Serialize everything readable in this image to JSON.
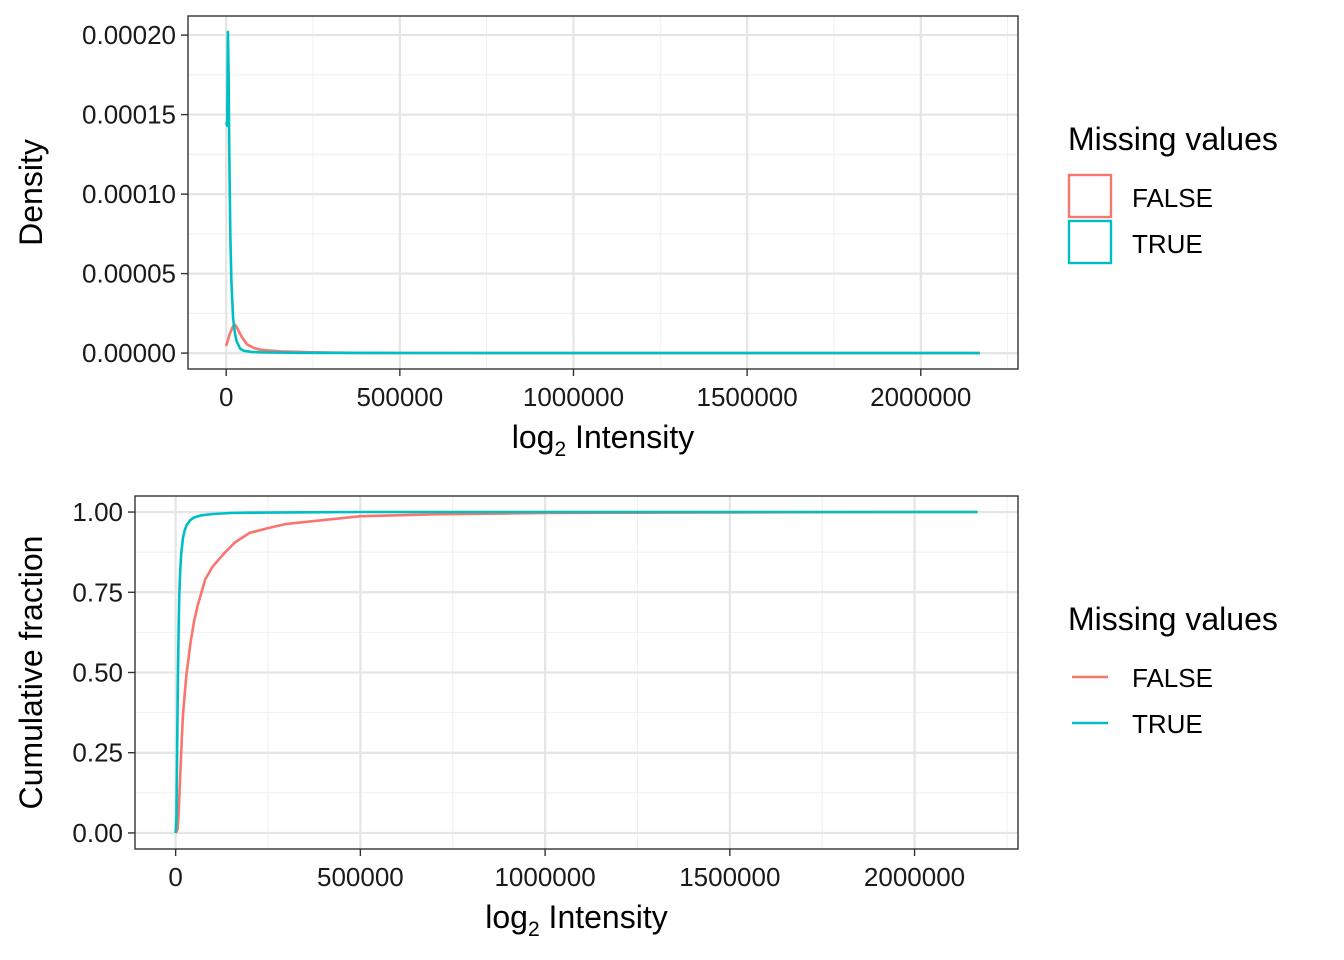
{
  "colors": {
    "FALSE": "#F8766D",
    "TRUE": "#00BFC4"
  },
  "chart_data": [
    {
      "type": "line",
      "subtype": "density",
      "title": "",
      "xlabel_main": "log",
      "xlabel_sub": "2",
      "xlabel_rest": " Intensity",
      "ylabel": "Density",
      "xlim": [
        -110000,
        2280000
      ],
      "ylim": [
        -1e-05,
        0.000212
      ],
      "x_ticks": [
        0,
        500000,
        1000000,
        1500000,
        2000000
      ],
      "x_tick_labels": [
        "0",
        "500000",
        "1000000",
        "1500000",
        "2000000"
      ],
      "y_ticks": [
        0,
        5e-05,
        0.0001,
        0.00015,
        0.0002
      ],
      "y_tick_labels": [
        "0.00000",
        "0.00005",
        "0.00010",
        "0.00015",
        "0.00020"
      ],
      "grid": true,
      "legend": {
        "title": "Missing values",
        "placement": "right",
        "key": "box",
        "entries": [
          "FALSE",
          "TRUE"
        ]
      },
      "series": [
        {
          "name": "FALSE",
          "x": [
            0,
            10000,
            20000,
            25000,
            30000,
            40000,
            50000,
            60000,
            80000,
            100000,
            130000,
            160000,
            200000,
            250000,
            300000,
            400000,
            500000,
            700000,
            1000000,
            1500000,
            2000000,
            2170000
          ],
          "y": [
            4.5e-06,
            1.2e-05,
            1.7e-05,
            1.78e-05,
            1.65e-05,
            1.2e-05,
            8.5e-06,
            5.5e-06,
            3.2e-06,
            2.1e-06,
            1.5e-06,
            1.1e-06,
            8e-07,
            5e-07,
            3e-07,
            1.5e-07,
            1e-07,
            5e-08,
            3e-08,
            2e-08,
            1e-08,
            1e-08
          ]
        },
        {
          "name": "TRUE",
          "x": [
            0,
            3000,
            5000,
            7000,
            9000,
            12000,
            15000,
            20000,
            25000,
            30000,
            40000,
            50000,
            70000,
            100000,
            150000,
            200000,
            300000,
            500000,
            1000000,
            1500000,
            2000000,
            2170000
          ],
          "y": [
            0.000145,
            0.000143,
            0.000202,
            0.000175,
            0.000125,
            7.2e-05,
            4.5e-05,
            2.2e-05,
            1.25e-05,
            7.5e-06,
            2.8e-06,
            1.5e-06,
            8e-07,
            5e-07,
            3e-07,
            2e-07,
            1e-07,
            5e-08,
            2e-08,
            1e-08,
            1e-08,
            1e-08
          ]
        }
      ]
    },
    {
      "type": "line",
      "subtype": "ecdf",
      "title": "",
      "xlabel_main": "log",
      "xlabel_sub": "2",
      "xlabel_rest": " Intensity",
      "ylabel": "Cumulative fraction",
      "xlim": [
        -110000,
        2280000
      ],
      "ylim": [
        -0.05,
        1.05
      ],
      "x_ticks": [
        0,
        500000,
        1000000,
        1500000,
        2000000
      ],
      "x_tick_labels": [
        "0",
        "500000",
        "1000000",
        "1500000",
        "2000000"
      ],
      "y_ticks": [
        0,
        0.25,
        0.5,
        0.75,
        1.0
      ],
      "y_tick_labels": [
        "0.00",
        "0.25",
        "0.50",
        "0.75",
        "1.00"
      ],
      "grid": true,
      "legend": {
        "title": "Missing values",
        "placement": "right",
        "key": "line",
        "entries": [
          "FALSE",
          "TRUE"
        ]
      },
      "series": [
        {
          "name": "FALSE",
          "x": [
            0,
            5000,
            8000,
            12000,
            16000,
            20000,
            25000,
            30000,
            40000,
            50000,
            60000,
            80000,
            100000,
            130000,
            160000,
            200000,
            250000,
            300000,
            400000,
            500000,
            700000,
            1000000,
            1500000,
            2000000,
            2170000
          ],
          "y": [
            0,
            0.01,
            0.06,
            0.17,
            0.28,
            0.37,
            0.44,
            0.5,
            0.59,
            0.66,
            0.71,
            0.79,
            0.83,
            0.87,
            0.905,
            0.935,
            0.95,
            0.963,
            0.975,
            0.987,
            0.993,
            0.997,
            0.999,
            1.0,
            1.0
          ]
        },
        {
          "name": "TRUE",
          "x": [
            0,
            2000,
            4000,
            6000,
            8000,
            10000,
            12000,
            15000,
            20000,
            25000,
            30000,
            40000,
            50000,
            70000,
            100000,
            150000,
            200000,
            300000,
            500000,
            1000000,
            1500000,
            2000000,
            2170000
          ],
          "y": [
            0,
            0.05,
            0.25,
            0.48,
            0.63,
            0.74,
            0.81,
            0.87,
            0.92,
            0.945,
            0.96,
            0.975,
            0.983,
            0.99,
            0.994,
            0.997,
            0.998,
            0.999,
            1.0,
            1.0,
            1.0,
            1.0,
            1.0
          ]
        }
      ]
    }
  ]
}
